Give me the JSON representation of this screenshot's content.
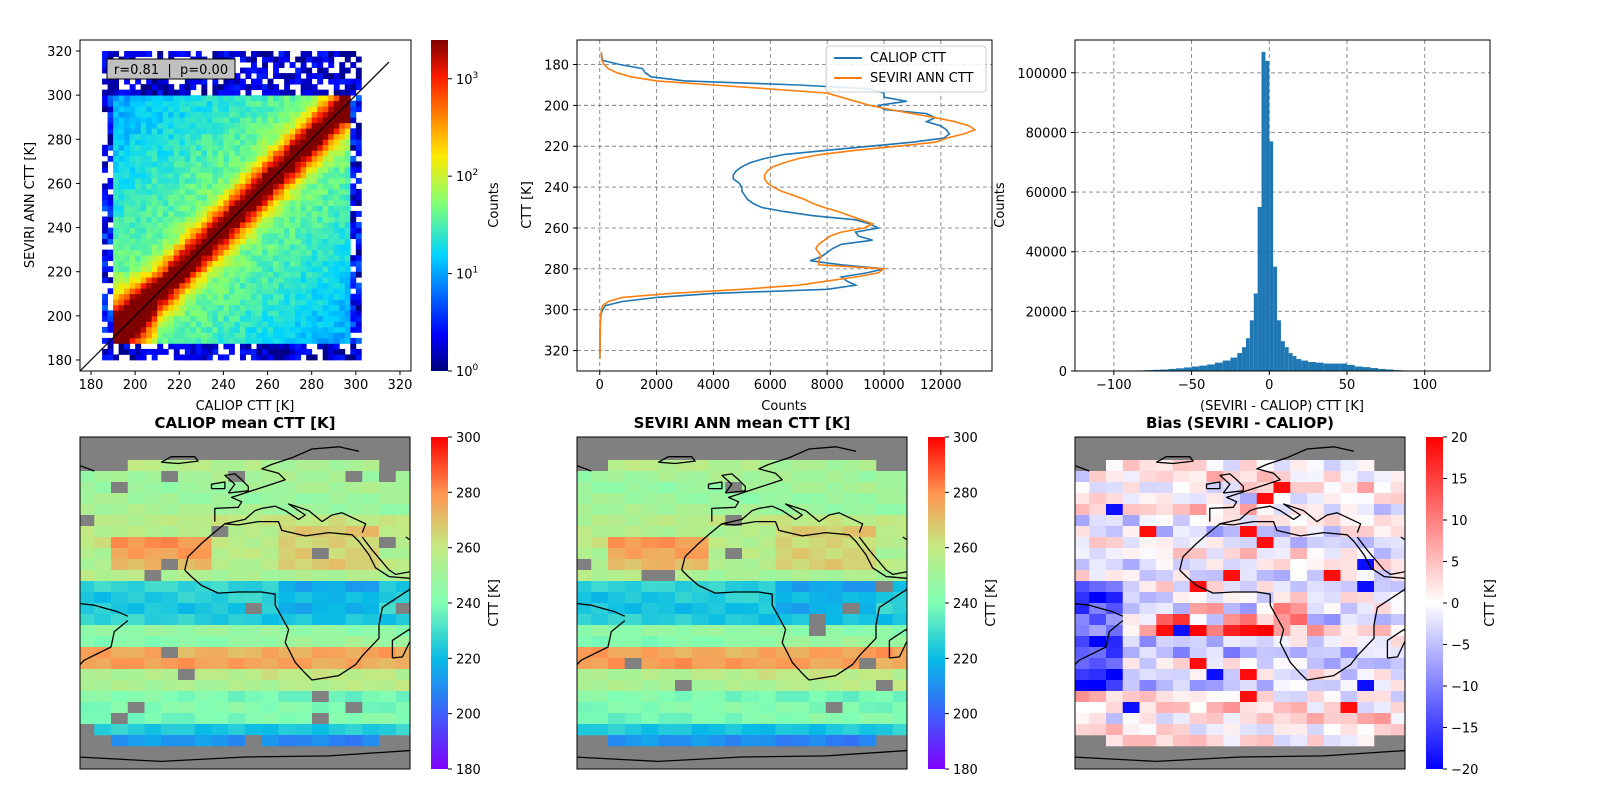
{
  "chart_data": [
    {
      "type": "heatmap",
      "title": "",
      "xlabel": "CALIOP CTT [K]",
      "ylabel": "SEVIRI ANN CTT [K]",
      "xlim": [
        175,
        325
      ],
      "ylim": [
        175,
        325
      ],
      "xticks": [
        180,
        200,
        220,
        240,
        260,
        280,
        300,
        320
      ],
      "yticks": [
        180,
        200,
        220,
        240,
        260,
        280,
        300,
        320
      ],
      "annotation": "r=0.81  |  p=0.00",
      "colorbar": {
        "label": "Counts",
        "scale": "log",
        "range": [
          1,
          2500
        ],
        "ticks": [
          "10^0",
          "10^1",
          "10^2",
          "10^3"
        ]
      },
      "one_to_one_line": true
    },
    {
      "type": "line",
      "title": "",
      "xlabel": "Counts",
      "ylabel": "CTT [K]",
      "xlim": [
        -800,
        13800
      ],
      "ylim": [
        330,
        168
      ],
      "xticks": [
        0,
        2000,
        4000,
        6000,
        8000,
        10000,
        12000
      ],
      "yticks": [
        180,
        200,
        220,
        240,
        260,
        280,
        300,
        320
      ],
      "grid": true,
      "legend": "top-right",
      "y": [
        174,
        178,
        180,
        182,
        184,
        186,
        188,
        190,
        192,
        194,
        196,
        198,
        200,
        202,
        204,
        206,
        208,
        210,
        212,
        214,
        216,
        218,
        220,
        222,
        224,
        226,
        228,
        230,
        232,
        234,
        236,
        238,
        240,
        242,
        244,
        246,
        248,
        250,
        252,
        254,
        256,
        258,
        260,
        262,
        264,
        266,
        268,
        270,
        272,
        274,
        276,
        278,
        280,
        282,
        284,
        286,
        288,
        290,
        292,
        294,
        296,
        298,
        300,
        302,
        304,
        306,
        308,
        310,
        312,
        314,
        316,
        318,
        320,
        322,
        324
      ],
      "series": [
        {
          "name": "CALIOP CTT",
          "color": "#1f77b4",
          "values": [
            50,
            100,
            700,
            1500,
            1600,
            1800,
            3000,
            7000,
            9500,
            10000,
            10000,
            10800,
            9800,
            10000,
            11500,
            11800,
            11500,
            12000,
            12200,
            12300,
            12100,
            11000,
            9500,
            8000,
            6500,
            5800,
            5300,
            5000,
            4800,
            4700,
            4700,
            4900,
            5000,
            5000,
            5100,
            5200,
            5400,
            5700,
            6500,
            7500,
            9000,
            9500,
            9800,
            9000,
            9100,
            9600,
            8500,
            8200,
            8000,
            7800,
            7400,
            8500,
            10000,
            9400,
            8500,
            8700,
            9000,
            8000,
            4000,
            2000,
            800,
            200,
            100,
            50,
            30,
            20,
            15,
            10,
            10,
            10,
            10,
            8,
            6,
            5,
            5
          ]
        },
        {
          "name": "SEVIRI ANN CTT",
          "color": "#ff7f0e",
          "values": [
            50,
            80,
            150,
            300,
            600,
            1100,
            2000,
            4000,
            6000,
            8000,
            8500,
            9000,
            9500,
            10200,
            11000,
            11800,
            12500,
            13000,
            13200,
            12800,
            12200,
            11800,
            10500,
            9000,
            7800,
            7000,
            6500,
            6100,
            5900,
            5800,
            5800,
            5900,
            6100,
            6400,
            6800,
            7200,
            7500,
            7900,
            8400,
            8800,
            9200,
            9600,
            9300,
            8500,
            8100,
            7900,
            7700,
            7600,
            7700,
            7800,
            7700,
            7700,
            10000,
            9800,
            9000,
            8000,
            7000,
            5000,
            2500,
            800,
            300,
            100,
            60,
            40,
            30,
            25,
            20,
            18,
            15,
            12,
            10,
            10,
            8,
            6,
            5
          ]
        }
      ]
    },
    {
      "type": "bar",
      "title": "",
      "xlabel": "(SEVIRI - CALIOP) CTT [K]",
      "ylabel": "Counts",
      "xlim": [
        -125,
        142
      ],
      "ylim": [
        0,
        111000
      ],
      "xticks": [
        -100,
        -50,
        0,
        50,
        100
      ],
      "yticks": [
        0,
        20000,
        40000,
        60000,
        80000,
        100000
      ],
      "grid": true,
      "color": "#1f77b4",
      "bin_width": 2.5,
      "bin_centers": [
        -97.5,
        -92.5,
        -87.5,
        -82.5,
        -77.5,
        -72.5,
        -67.5,
        -62.5,
        -57.5,
        -52.5,
        -47.5,
        -42.5,
        -37.5,
        -32.5,
        -27.5,
        -22.5,
        -18.75,
        -16.25,
        -13.75,
        -11.25,
        -8.75,
        -6.25,
        -3.75,
        -1.25,
        1.25,
        3.75,
        6.25,
        8.75,
        11.25,
        13.75,
        16.25,
        18.75,
        22.5,
        27.5,
        32.5,
        37.5,
        42.5,
        47.5,
        52.5,
        57.5,
        62.5,
        67.5,
        72.5,
        77.5,
        82.5,
        87.5,
        92.5
      ],
      "values": [
        100,
        100,
        150,
        200,
        300,
        400,
        500,
        700,
        900,
        1200,
        1500,
        1800,
        2200,
        2800,
        3500,
        4500,
        6000,
        8000,
        11000,
        17000,
        26000,
        55000,
        107000,
        104000,
        77000,
        35000,
        17000,
        10000,
        8000,
        6000,
        5000,
        4000,
        3500,
        3000,
        2800,
        2500,
        2500,
        2500,
        2000,
        1500,
        1300,
        1000,
        700,
        500,
        300,
        200,
        150
      ]
    },
    {
      "type": "heatmap",
      "title": "CALIOP mean CTT [K]",
      "colorbar": {
        "label": "CTT [K]",
        "range": [
          180,
          300
        ],
        "ticks": [
          180,
          200,
          220,
          240,
          260,
          280,
          300
        ]
      },
      "bands": [
        {
          "lat": [
            72,
            58
          ],
          "value": 255
        },
        {
          "lat": [
            58,
            40
          ],
          "value": 250
        },
        {
          "lat": [
            40,
            25
          ],
          "value": 258
        },
        {
          "lat": [
            25,
            12
          ],
          "value": 255
        },
        {
          "lat": [
            12,
            -8
          ],
          "value": 225
        },
        {
          "lat": [
            -8,
            -18
          ],
          "value": 245
        },
        {
          "lat": [
            -18,
            -32
          ],
          "value": 275
        },
        {
          "lat": [
            -32,
            -42
          ],
          "value": 255
        },
        {
          "lat": [
            -42,
            -55
          ],
          "value": 240
        },
        {
          "lat": [
            -55,
            -62
          ],
          "value": 225
        },
        {
          "lat": [
            -62,
            -75
          ],
          "value": 210
        }
      ]
    },
    {
      "type": "heatmap",
      "title": "SEVIRI ANN mean CTT [K]",
      "colorbar": {
        "label": "CTT [K]",
        "range": [
          180,
          300
        ],
        "ticks": [
          180,
          200,
          220,
          240,
          260,
          280,
          300
        ]
      },
      "bands": [
        {
          "lat": [
            72,
            58
          ],
          "value": 255
        },
        {
          "lat": [
            58,
            40
          ],
          "value": 249
        },
        {
          "lat": [
            40,
            25
          ],
          "value": 257
        },
        {
          "lat": [
            25,
            12
          ],
          "value": 254
        },
        {
          "lat": [
            12,
            -8
          ],
          "value": 224
        },
        {
          "lat": [
            -8,
            -18
          ],
          "value": 244
        },
        {
          "lat": [
            -18,
            -32
          ],
          "value": 276
        },
        {
          "lat": [
            -32,
            -42
          ],
          "value": 255
        },
        {
          "lat": [
            -42,
            -55
          ],
          "value": 240
        },
        {
          "lat": [
            -55,
            -62
          ],
          "value": 224
        },
        {
          "lat": [
            -62,
            -75
          ],
          "value": 209
        }
      ]
    },
    {
      "type": "heatmap",
      "title": "Bias (SEVIRI - CALIOP)",
      "colorbar": {
        "label": "CTT [K]",
        "range": [
          -20,
          20
        ],
        "ticks": [
          -20,
          -15,
          -10,
          -5,
          0,
          5,
          10,
          15,
          20
        ]
      },
      "bands": [
        {
          "lat": [
            72,
            40
          ],
          "value": 1
        },
        {
          "lat": [
            40,
            12
          ],
          "value": -1
        },
        {
          "lat": [
            12,
            -8
          ],
          "value": -2
        },
        {
          "lat": [
            -8,
            -15
          ],
          "value": 4
        },
        {
          "lat": [
            -15,
            -40
          ],
          "value": -3
        },
        {
          "lat": [
            -40,
            -75
          ],
          "value": 2
        }
      ]
    }
  ]
}
